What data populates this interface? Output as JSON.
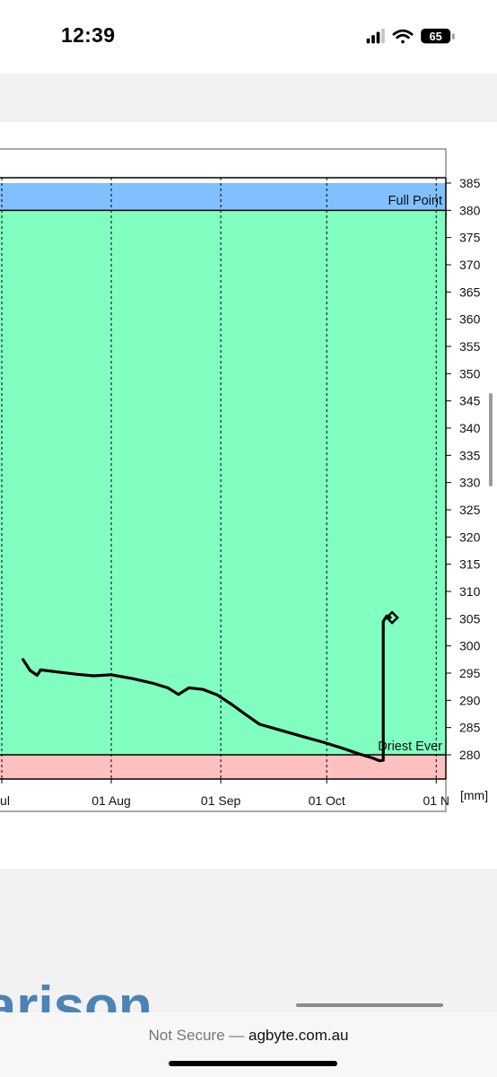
{
  "status_bar": {
    "time": "12:39",
    "battery": "65"
  },
  "browser": {
    "security_label": "Not Secure —",
    "host": "agbyte.com.au"
  },
  "page": {
    "section_heading": "nparison"
  },
  "colors": {
    "full_zone": "#80c0ff",
    "normal_zone": "#80ffc0",
    "dry_zone": "#ffc0c0",
    "line": "#000000",
    "heading": "#4b83b5"
  },
  "chart_data": {
    "type": "line",
    "title": "",
    "xlabel": "",
    "ylabel": "[mm]",
    "ylim": [
      280,
      385
    ],
    "y_ticks": [
      280,
      285,
      290,
      295,
      300,
      305,
      310,
      315,
      320,
      325,
      330,
      335,
      340,
      345,
      350,
      355,
      360,
      365,
      370,
      375,
      380,
      385
    ],
    "x_ticks": [
      {
        "date": "2023-07-01",
        "label": "Jul"
      },
      {
        "date": "2023-08-01",
        "label": "01 Aug"
      },
      {
        "date": "2023-09-01",
        "label": "01 Sep"
      },
      {
        "date": "2023-10-01",
        "label": "01 Oct"
      },
      {
        "date": "2023-11-01",
        "label": "01 N"
      }
    ],
    "bands": [
      {
        "name": "Full Point",
        "from": 380,
        "to": 385
      },
      {
        "name": "",
        "from": 280,
        "to": 380
      },
      {
        "name": "Driest Ever",
        "from": 275,
        "to": 280
      }
    ],
    "grid": true,
    "legend": "none",
    "series": [
      {
        "points": [
          [
            "2023-07-07",
            297.5
          ],
          [
            "2023-07-09",
            295.5
          ],
          [
            "2023-07-11",
            294.6
          ],
          [
            "2023-07-12",
            295.6
          ],
          [
            "2023-07-17",
            295.2
          ],
          [
            "2023-07-22",
            294.8
          ],
          [
            "2023-07-27",
            294.5
          ],
          [
            "2023-08-01",
            294.7
          ],
          [
            "2023-08-07",
            294.0
          ],
          [
            "2023-08-13",
            293.1
          ],
          [
            "2023-08-17",
            292.3
          ],
          [
            "2023-08-20",
            291.1
          ],
          [
            "2023-08-23",
            292.3
          ],
          [
            "2023-08-27",
            292.0
          ],
          [
            "2023-08-31",
            291.0
          ],
          [
            "2023-09-04",
            289.3
          ],
          [
            "2023-09-08",
            287.4
          ],
          [
            "2023-09-12",
            285.6
          ],
          [
            "2023-09-18",
            284.5
          ],
          [
            "2023-09-24",
            283.4
          ],
          [
            "2023-09-30",
            282.3
          ],
          [
            "2023-10-05",
            281.3
          ],
          [
            "2023-10-10",
            280.2
          ],
          [
            "2023-10-14",
            279.4
          ],
          [
            "2023-10-16",
            278.9
          ],
          [
            "2023-10-17",
            279.0
          ],
          [
            "2023-10-17",
            289.0
          ],
          [
            "2023-10-17",
            304.5
          ],
          [
            "2023-10-18",
            305.5
          ],
          [
            "2023-10-19",
            305.2
          ]
        ]
      }
    ]
  }
}
